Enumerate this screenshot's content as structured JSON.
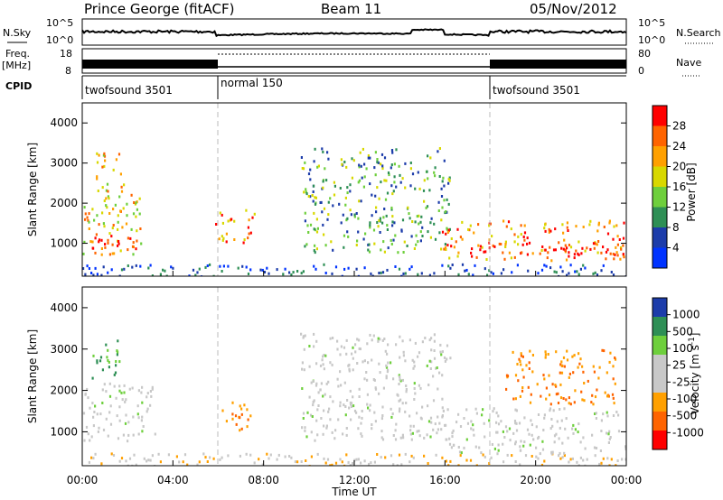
{
  "header": {
    "station": "Prince George (fitACF)",
    "beam": "Beam 11",
    "date": "05/Nov/2012"
  },
  "top_panels": {
    "nsky_label": "N.Sky",
    "nsearch_label": "N.Search",
    "nsky_tick_hi": "10^5",
    "nsky_tick_lo": "10^0",
    "nsearch_tick_hi": "10^5",
    "nsearch_tick_lo": "10^0",
    "freq_label_1": "Freq.",
    "freq_label_2": "[MHz]",
    "freq_tick_hi": "18",
    "freq_tick_lo": "8",
    "nave_label": "Nave",
    "nave_tick_hi": "80",
    "nave_tick_lo": "0",
    "cpid_label": "CPID"
  },
  "cpid_segments": [
    {
      "label": "twofsound 3501",
      "start_hour": 0,
      "end_hour": 6
    },
    {
      "label": "normal 150",
      "start_hour": 6,
      "end_hour": 18
    },
    {
      "label": "twofsound 3501",
      "start_hour": 18,
      "end_hour": 24
    }
  ],
  "chart_data": [
    {
      "type": "heatmap",
      "quantity": "power",
      "xlabel": "",
      "ylabel": "Slant Range [km]",
      "xlim": [
        0,
        24
      ],
      "ylim": [
        180,
        4500
      ],
      "yticks": [
        1000,
        2000,
        3000,
        4000
      ],
      "colorbar_label": "Power [dB]",
      "colorbar_ticks": [
        "28",
        "24",
        "20",
        "16",
        "12",
        "8",
        "4"
      ],
      "colorbar_colors": [
        "#ff0000",
        "#ff6400",
        "#ffa000",
        "#d8d800",
        "#6ecf3c",
        "#2e8f55",
        "#1c3caa",
        "#0033ff"
      ],
      "echo_regions": [
        {
          "start_hour": 0.0,
          "end_hour": 2.6,
          "range_min_km": 700,
          "range_max_km": 2300,
          "level": 4
        },
        {
          "start_hour": 0.4,
          "end_hour": 2.4,
          "range_min_km": 850,
          "range_max_km": 1300,
          "level": 7
        },
        {
          "start_hour": 0.6,
          "end_hour": 1.8,
          "range_min_km": 2300,
          "range_max_km": 3300,
          "level": 4
        },
        {
          "start_hour": 5.8,
          "end_hour": 7.6,
          "range_min_km": 1000,
          "range_max_km": 1900,
          "level": 5
        },
        {
          "start_hour": 9.6,
          "end_hour": 16.2,
          "range_min_km": 800,
          "range_max_km": 3400,
          "level": 2
        },
        {
          "start_hour": 15.6,
          "end_hour": 24.0,
          "range_min_km": 600,
          "range_max_km": 1600,
          "level": 5
        },
        {
          "start_hour": 17.0,
          "end_hour": 24.0,
          "range_min_km": 750,
          "range_max_km": 1050,
          "level": 7
        }
      ]
    },
    {
      "type": "heatmap",
      "quantity": "velocity",
      "xlabel": "Time UT",
      "ylabel": "Slant Range [km]",
      "xlim": [
        0,
        24
      ],
      "ylim": [
        180,
        4500
      ],
      "yticks": [
        1000,
        2000,
        3000,
        4000
      ],
      "xticks": [
        "00:00",
        "04:00",
        "08:00",
        "12:00",
        "16:00",
        "20:00",
        "00:00"
      ],
      "colorbar_label": "Velocity [m s^-1]",
      "colorbar_ticks": [
        "1000",
        "500",
        "100",
        "25",
        "-25",
        "-100",
        "-500",
        "-1000"
      ],
      "colorbar_colors": [
        "#1c3caa",
        "#2e8f55",
        "#6ecf3c",
        "#c8c8c8",
        "#c8c8c8",
        "#ffa000",
        "#ff6400",
        "#ff0000"
      ],
      "echo_regions": [
        {
          "start_hour": 0.0,
          "end_hour": 3.2,
          "range_min_km": 800,
          "range_max_km": 2200,
          "value": "ground"
        },
        {
          "start_hour": 0.4,
          "end_hour": 1.8,
          "range_min_km": 2300,
          "range_max_km": 3300,
          "value": "positive"
        },
        {
          "start_hour": 6.0,
          "end_hour": 7.4,
          "range_min_km": 1000,
          "range_max_km": 1800,
          "value": "negative"
        },
        {
          "start_hour": 9.6,
          "end_hour": 16.2,
          "range_min_km": 800,
          "range_max_km": 3400,
          "value": "ground"
        },
        {
          "start_hour": 15.6,
          "end_hour": 24.0,
          "range_min_km": 500,
          "range_max_km": 1600,
          "value": "ground"
        },
        {
          "start_hour": 18.6,
          "end_hour": 23.5,
          "range_min_km": 1700,
          "range_max_km": 3000,
          "value": "negative"
        }
      ]
    }
  ]
}
